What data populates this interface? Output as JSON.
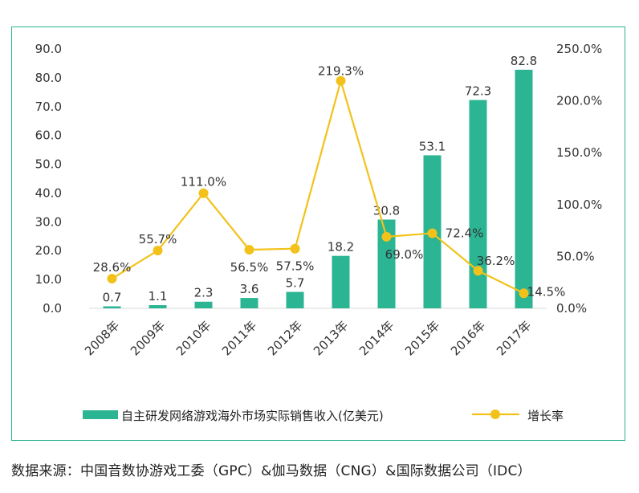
{
  "chart_data": {
    "type": "bar+line",
    "categories": [
      "2008年",
      "2009年",
      "2010年",
      "2011年",
      "2012年",
      "2013年",
      "2014年",
      "2015年",
      "2016年",
      "2017年"
    ],
    "series": [
      {
        "name": "自主研发网络游戏海外市场实际销售收入(亿美元)",
        "type": "bar",
        "axis": "left",
        "values": [
          0.7,
          1.1,
          2.3,
          3.6,
          5.7,
          18.2,
          30.8,
          53.1,
          72.3,
          82.8
        ],
        "labels": [
          "0.7",
          "1.1",
          "2.3",
          "3.6",
          "5.7",
          "18.2",
          "30.8",
          "53.1",
          "72.3",
          "82.8"
        ]
      },
      {
        "name": "增长率",
        "type": "line",
        "axis": "right",
        "values": [
          28.6,
          55.7,
          111.0,
          56.5,
          57.5,
          219.3,
          69.0,
          72.4,
          36.2,
          14.5
        ],
        "labels": [
          "28.6%",
          "55.7%",
          "111.0%",
          "56.5%",
          "57.5%",
          "219.3%",
          "69.0%",
          "72.4%",
          "36.2%",
          "14.5%"
        ]
      }
    ],
    "ylim_left": [
      0,
      90
    ],
    "ylim_right": [
      0,
      250
    ],
    "yticks_left": [
      "0.0",
      "10.0",
      "20.0",
      "30.0",
      "40.0",
      "50.0",
      "60.0",
      "70.0",
      "80.0",
      "90.0"
    ],
    "yticks_right": [
      "0.0%",
      "50.0%",
      "100.0%",
      "150.0%",
      "200.0%",
      "250.0%"
    ],
    "grid": false,
    "legend_position": "bottom",
    "colors": {
      "bar": "#2bb593",
      "line": "#f2c21b",
      "frame": "#2bb593",
      "text": "#333333"
    }
  },
  "source": "数据来源：中国音数协游戏工委（GPC）&伽马数据（CNG）&国际数据公司（IDC）"
}
